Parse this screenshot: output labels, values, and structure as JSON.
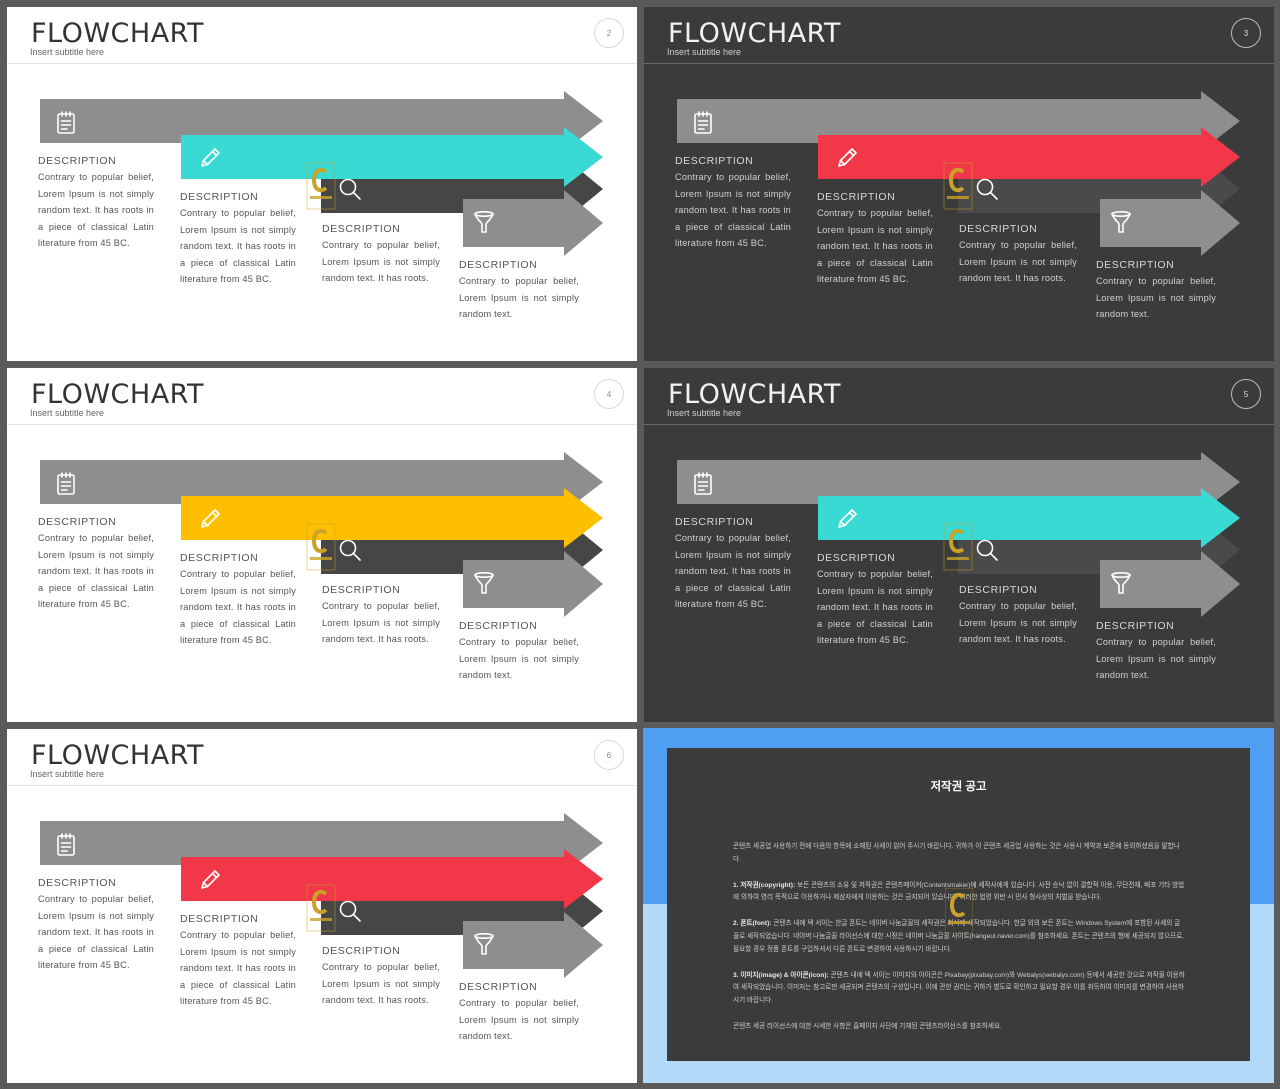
{
  "slides": [
    {
      "page": "2",
      "title": "FLOWCHART",
      "subtitle": "Insert  subtitle  here",
      "theme": "light",
      "accent": "#39d9d4"
    },
    {
      "page": "3",
      "title": "FLOWCHART",
      "subtitle": "Insert  subtitle  here",
      "theme": "dark",
      "accent": "#f23848"
    },
    {
      "page": "4",
      "title": "FLOWCHART",
      "subtitle": "Insert  subtitle  here",
      "theme": "light",
      "accent": "#fdbf00"
    },
    {
      "page": "5",
      "title": "FLOWCHART",
      "subtitle": "Insert  subtitle  here",
      "theme": "dark",
      "accent": "#39d9d4"
    },
    {
      "page": "6",
      "title": "FLOWCHART",
      "subtitle": "Insert  subtitle  here",
      "theme": "light",
      "accent": "#f23848"
    }
  ],
  "descriptions": [
    {
      "heading": "DESCRIPTION",
      "text": "Contrary to popular belief, Lorem Ipsum is not simply random text. It has roots in a piece of classical Latin literature from 45 BC."
    },
    {
      "heading": "DESCRIPTION",
      "text": "Contrary to popular belief, Lorem Ipsum is not simply random text. It has roots in a piece of classical Latin literature from 45 BC."
    },
    {
      "heading": "DESCRIPTION",
      "text": "Contrary to popular belief, Lorem Ipsum is not simply random text. It has roots."
    },
    {
      "heading": "DESCRIPTION",
      "text": "Contrary to popular belief, Lorem Ipsum is not simply random text."
    }
  ],
  "icons": [
    "notepad-icon",
    "pencil-icon",
    "search-icon",
    "funnel-icon"
  ],
  "colors": {
    "gray_arrow": "#8e8e8e",
    "dark_arrow": "#464646",
    "dark_arrow_on_dark": "#4a4a4a"
  },
  "copyright": {
    "title": "저작권 공고",
    "intro": "콘텐츠 세공업 사용하기 전에 다음의 항목에 소재된 사세이 읽어 주시기 바랍니다. 귀하가 이 콘텐츠 세공업 사용하는 것은 사용시 계약과 보존에 동의하셨음을 말합니다.",
    "s1_label": "1. 저작권(copyright):",
    "s1": "보든 콘텐츠의 소유 및 저작권은 콘텐츠메이커(Contentsmaker)에 세작사에게 있습니다. 사전 승낙 없이 결합적 이용, 무단전재, 배포 기타 방법에 의하여 영리 목적으로 이용하거나 제삼자에게 이용하는 것은 금지되어 있습니다. 이러한 법령 위반 시 민사 형사상의 처벌을 받습니다.",
    "s2_label": "2. 폰트(font):",
    "s2": "콘텐츠 내에 텍 서이는 한글 폰트는 네이버 나눔글꼴의 세작권은 회사에 세작되었습니다. 한글 외의 보든 폰트는 Windows System에 포함된 사세의 글꼴로 세작되었습니다. 네이버 나눔글꼴 라이선스에 대한 시정은 네이버 나눔글꼴 사이트(hangeul.naver.com)를 참조하세요. 폰트는 콘텐츠의 형에 세공되지 않으므로, 필요할 경우 정품 폰트를 구입하셔서 다른 폰트로 변경하여 사용하시기 바랍니다.",
    "s3_label": "3. 이미지(image) & 아이콘(icon):",
    "s3": "콘텐츠 내에 텍 서이는 이미지와 아이콘은 Pixabay(pixabay.com)와 Webalys(webalys.com) 등에서 세공한 것으로 저작물 이용하여 세작되었습니다. 이미지는 참고로만 세공되며 콘텐츠의 구성입니다. 이에 관한 권리는 귀하가 별도로 확인하고 필요할 경우 이를 취득하여 이미지를 변경하여 사용하시기 바랍니다.",
    "outro": "콘텐츠 세공 라이선스에 대한 시세한 사항은 홈페이지 사단에 기재된 콘텐츠라이선스를 참조하세요."
  }
}
